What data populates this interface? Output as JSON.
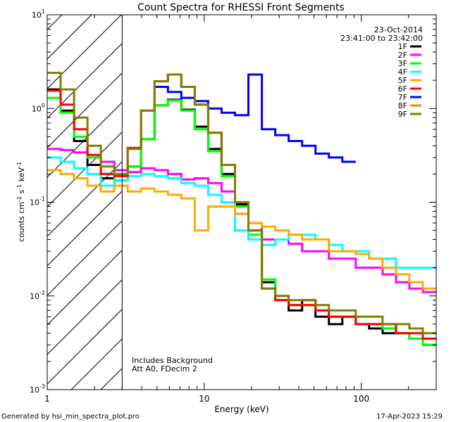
{
  "chart_data": {
    "type": "line",
    "title": "Count Spectra for RHESSI Front Segments",
    "xlabel": "Energy (keV)",
    "ylabel_main": "counts cm",
    "ylabel_sup1": "-2",
    "ylabel_mid1": " s",
    "ylabel_sup2": "-1",
    "ylabel_mid2": " keV",
    "ylabel_sup3": "-1",
    "x_scale": "log",
    "y_scale": "log",
    "xlim": [
      1,
      300
    ],
    "ylim": [
      0.001,
      10
    ],
    "x_ticks": [
      {
        "value": 1,
        "label": "1"
      },
      {
        "value": 10,
        "label": "10"
      },
      {
        "value": 100,
        "label": "100"
      }
    ],
    "y_ticks": [
      {
        "value": 0.001,
        "base": "10",
        "exp": "-3"
      },
      {
        "value": 0.01,
        "base": "10",
        "exp": "-2"
      },
      {
        "value": 0.1,
        "base": "10",
        "exp": "-1"
      },
      {
        "value": 1,
        "base": "10",
        "exp": "0"
      },
      {
        "value": 10,
        "base": "10",
        "exp": "1"
      }
    ],
    "hatched_region_below": 3,
    "date": "23-Oct-2014",
    "time_range": "23:41:00 to 23:42:00",
    "notes": [
      "Includes Background",
      "Att A0, FDecim 2"
    ],
    "legend_position": "top-right",
    "series": [
      {
        "name": "1F",
        "color": "#000000",
        "values": [
          1.6,
          0.95,
          0.45,
          0.25,
          0.18,
          0.17,
          0.24,
          0.47,
          1.08,
          1.24,
          0.97,
          0.64,
          0.37,
          0.2,
          0.095,
          0.05,
          0.014,
          0.009,
          0.007,
          0.009,
          0.006,
          0.005,
          0.006,
          0.005,
          0.0045,
          0.004,
          0.004,
          0.0035,
          0.003
        ]
      },
      {
        "name": "2F",
        "color": "#ff00ff",
        "values": [
          0.37,
          0.36,
          0.34,
          0.3,
          0.27,
          0.22,
          0.21,
          0.23,
          0.22,
          0.2,
          0.175,
          0.18,
          0.16,
          0.13,
          0.075,
          0.06,
          0.04,
          0.04,
          0.036,
          0.03,
          0.03,
          0.025,
          0.025,
          0.02,
          0.02,
          0.017,
          0.014,
          0.012,
          0.011
        ]
      },
      {
        "name": "3F",
        "color": "#00ff00",
        "values": [
          1.3,
          0.9,
          0.5,
          0.3,
          0.2,
          0.17,
          0.24,
          0.47,
          1.08,
          1.22,
          0.95,
          0.6,
          0.35,
          0.19,
          0.09,
          0.045,
          0.015,
          0.01,
          0.008,
          0.008,
          0.007,
          0.006,
          0.006,
          0.005,
          0.005,
          0.0045,
          0.004,
          0.0035,
          0.003
        ]
      },
      {
        "name": "4F",
        "color": "#00ffff",
        "values": [
          0.3,
          0.27,
          0.23,
          0.2,
          0.15,
          0.17,
          0.19,
          0.2,
          0.19,
          0.18,
          0.16,
          0.15,
          0.12,
          0.1,
          0.05,
          0.04,
          0.035,
          0.04,
          0.045,
          0.045,
          0.04,
          0.035,
          0.03,
          0.03,
          0.025,
          0.025,
          0.02,
          0.02,
          0.02
        ]
      },
      {
        "name": "5F",
        "color": "#ffaa00",
        "values": [
          0.22,
          0.2,
          0.18,
          0.15,
          0.13,
          0.15,
          0.13,
          0.14,
          0.13,
          0.12,
          0.11,
          0.05,
          0.09,
          0.09,
          0.075,
          0.06,
          0.055,
          0.05,
          0.045,
          0.04,
          0.04,
          0.03,
          0.03,
          0.028,
          0.025,
          0.02,
          0.017,
          0.014,
          0.012
        ]
      },
      {
        "name": "6F",
        "color": "#ff0000",
        "values": [
          1.55,
          1.1,
          0.6,
          0.32,
          0.2,
          0.19,
          0.38,
          0.95,
          1.95,
          2.3,
          1.7,
          1.1,
          0.55,
          0.25,
          0.1,
          0.05,
          0.012,
          0.009,
          0.008,
          0.008,
          0.007,
          0.006,
          0.006,
          0.005,
          0.005,
          0.005,
          0.004,
          0.004,
          0.0035
        ]
      },
      {
        "name": "7F",
        "color": "#0000ff",
        "values": [
          1.7,
          1.5,
          1.3,
          1.2,
          1.0,
          0.9,
          0.85,
          2.3,
          0.6,
          0.52,
          0.45,
          0.4,
          0.33,
          0.3,
          0.27
        ]
      },
      {
        "name": "8F",
        "color": "#ff7f00",
        "values": []
      },
      {
        "name": "9F",
        "color": "#7f7f00",
        "values": [
          2.4,
          1.6,
          0.8,
          0.4,
          0.24,
          0.2,
          0.37,
          0.95,
          1.95,
          2.3,
          1.7,
          1.1,
          0.55,
          0.25,
          0.1,
          0.05,
          0.012,
          0.01,
          0.009,
          0.009,
          0.008,
          0.007,
          0.007,
          0.006,
          0.006,
          0.005,
          0.005,
          0.0045,
          0.004
        ]
      }
    ]
  },
  "footer": {
    "generator": "Generated by hsi_min_spectra_plot.pro",
    "timestamp": "17-Apr-2023 15:29"
  }
}
